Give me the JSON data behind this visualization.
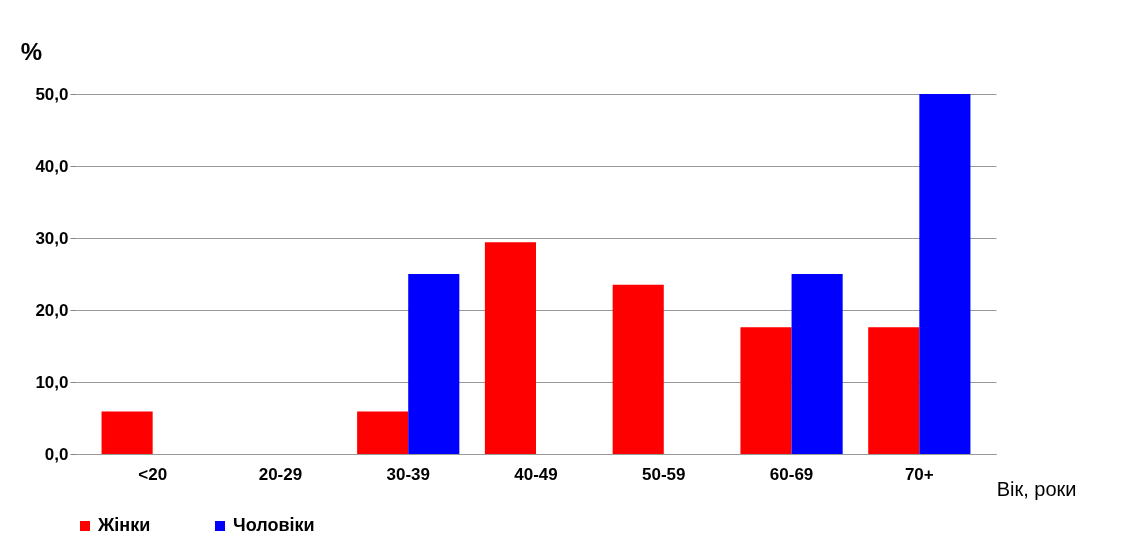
{
  "chart_data": {
    "type": "bar",
    "xlabel": "Вік, роки",
    "ylabel": "%",
    "categories": [
      "<20",
      "20-29",
      "30-39",
      "40-49",
      "50-59",
      "60-69",
      "70+"
    ],
    "series": [
      {
        "name": "Жінки",
        "color": "#ff0000",
        "values": [
          5.9,
          0,
          5.9,
          29.4,
          23.5,
          17.6,
          17.6
        ]
      },
      {
        "name": "Чоловіки",
        "color": "#0000ff",
        "values": [
          0,
          0,
          25,
          0,
          0,
          25,
          50
        ]
      }
    ],
    "ylim": [
      0,
      50
    ],
    "yticks": [
      {
        "value": 0,
        "label": "0,0"
      },
      {
        "value": 10,
        "label": "10,0"
      },
      {
        "value": 20,
        "label": "20,0"
      },
      {
        "value": 30,
        "label": "30,0"
      },
      {
        "value": 40,
        "label": "40,0"
      },
      {
        "value": 50,
        "label": "50,0"
      }
    ],
    "grid": "y",
    "legend": "bottom"
  }
}
